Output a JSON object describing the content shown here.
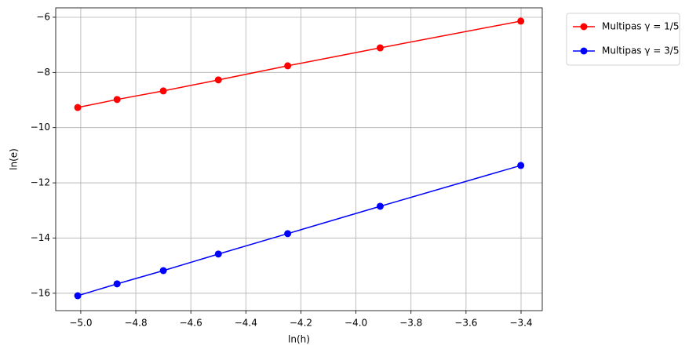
{
  "chart_data": {
    "type": "line",
    "xlabel": "ln(h)",
    "ylabel": "ln(e)",
    "x": [
      -5.011,
      -4.868,
      -4.7,
      -4.5,
      -4.248,
      -3.912,
      -3.401
    ],
    "series": [
      {
        "name": "Multipas γ = 1/5",
        "color": "#ff0000",
        "values": [
          -9.27,
          -8.98,
          -8.67,
          -8.27,
          -7.76,
          -7.11,
          -6.14
        ]
      },
      {
        "name": "Multipas γ = 3/5",
        "color": "#0000ff",
        "values": [
          -16.09,
          -15.66,
          -15.18,
          -14.58,
          -13.84,
          -12.85,
          -11.37
        ]
      }
    ],
    "xlim": [
      -5.091,
      -3.323
    ],
    "ylim": [
      -16.63,
      -5.66
    ],
    "xticks": [
      {
        "value": -5.0,
        "label": "−5.0"
      },
      {
        "value": -4.8,
        "label": "−4.8"
      },
      {
        "value": -4.6,
        "label": "−4.6"
      },
      {
        "value": -4.4,
        "label": "−4.4"
      },
      {
        "value": -4.2,
        "label": "−4.2"
      },
      {
        "value": -4.0,
        "label": "−4.0"
      },
      {
        "value": -3.8,
        "label": "−3.8"
      },
      {
        "value": -3.6,
        "label": "−3.6"
      },
      {
        "value": -3.4,
        "label": "−3.4"
      }
    ],
    "yticks": [
      {
        "value": -16,
        "label": "−16"
      },
      {
        "value": -14,
        "label": "−14"
      },
      {
        "value": -12,
        "label": "−12"
      },
      {
        "value": -10,
        "label": "−10"
      },
      {
        "value": -8,
        "label": "−8"
      },
      {
        "value": -6,
        "label": "−6"
      }
    ],
    "grid": true,
    "legend": "outside upper right"
  }
}
